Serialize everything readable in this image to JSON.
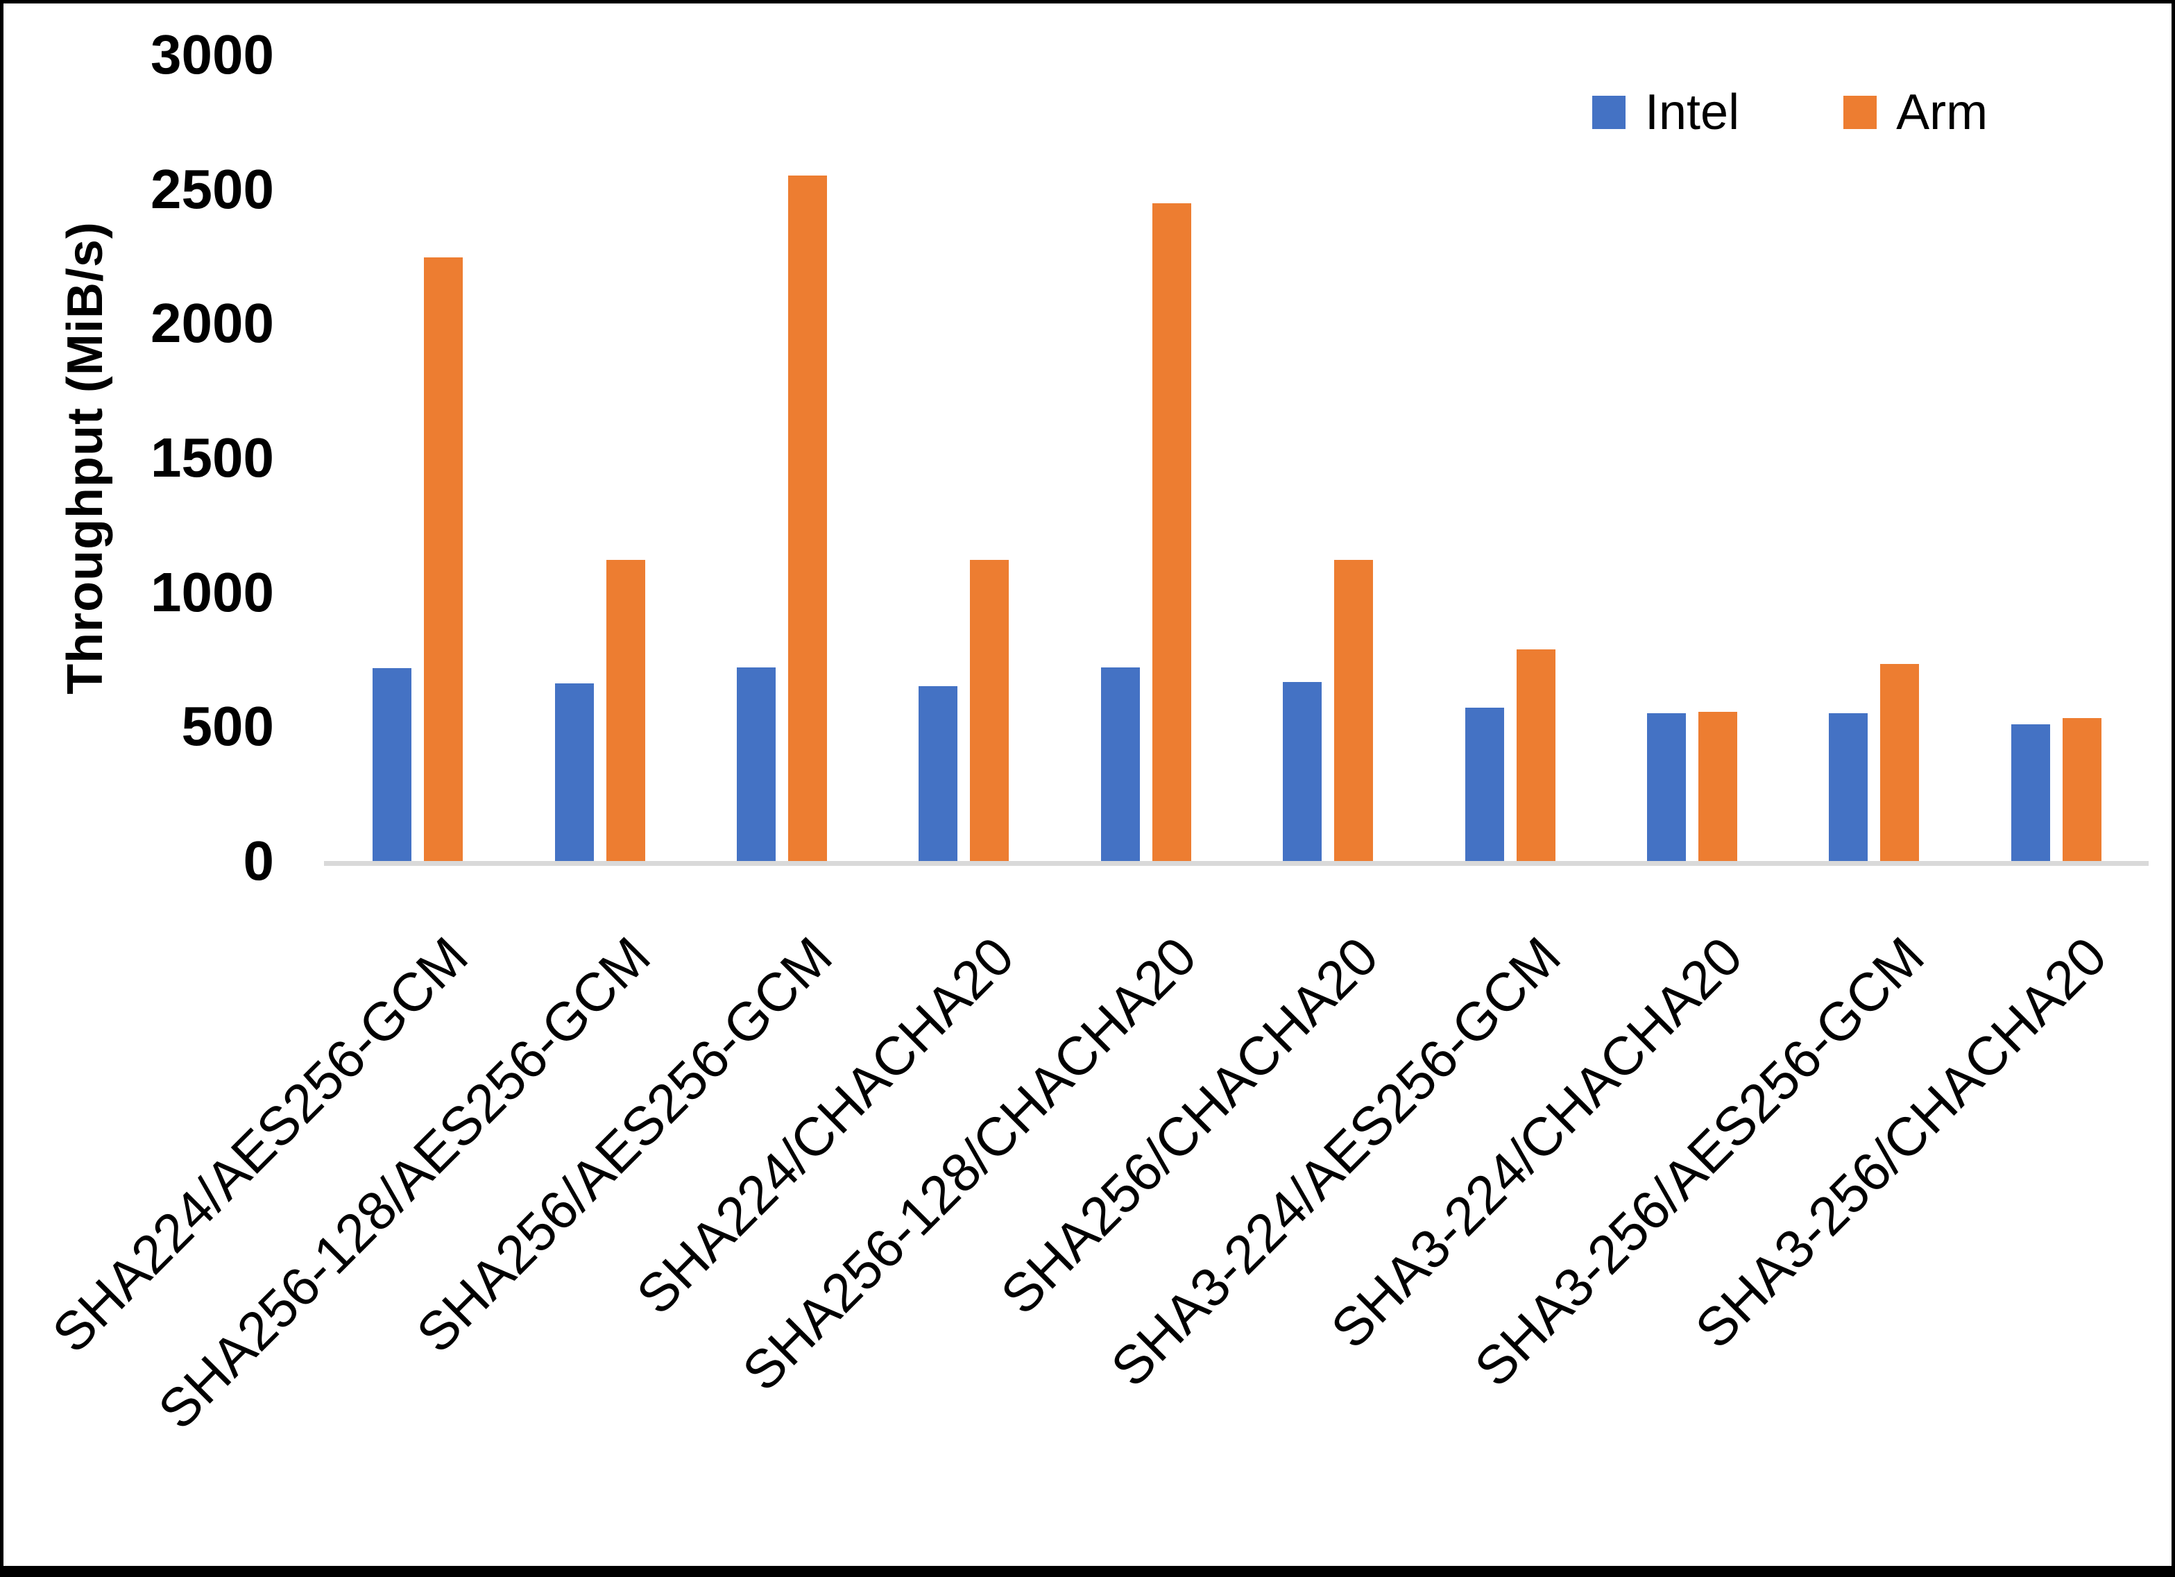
{
  "chart_data": {
    "type": "bar",
    "title": "",
    "xlabel": "",
    "ylabel": "Throughput (MiB/s)",
    "ylim": [
      0,
      3000
    ],
    "yticks": [
      0,
      500,
      1000,
      1500,
      2000,
      2500,
      3000
    ],
    "grid": false,
    "legend_position": "top-right",
    "axis_line_color": "#D9D9D9",
    "categories": [
      "SHA224/AES256-GCM",
      "SHA256-128/AES256-GCM",
      "SHA256/AES256-GCM",
      "SHA224/CHACHA20",
      "SHA256-128/CHACHA20",
      "SHA256/CHACHA20",
      "SHA3-224/AES256-GCM",
      "SHA3-224/CHACHA20",
      "SHA3-256/AES256-GCM",
      "SHA3-256/CHACHA20"
    ],
    "series": [
      {
        "name": "Intel",
        "color": "#4472C4",
        "values": [
          718,
          660,
          721,
          651,
          720,
          666,
          571,
          550,
          550,
          509
        ]
      },
      {
        "name": "Arm",
        "color": "#ED7D31",
        "values": [
          2245,
          1120,
          2551,
          1120,
          2448,
          1121,
          788,
          556,
          733,
          532
        ]
      }
    ]
  }
}
